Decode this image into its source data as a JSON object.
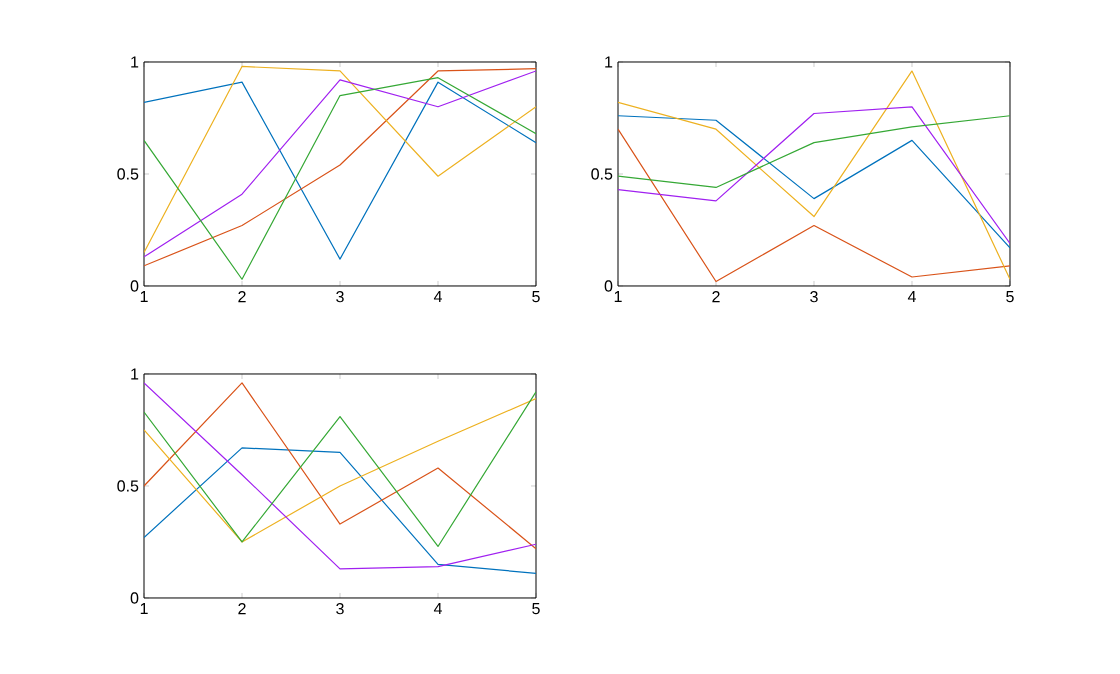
{
  "chart_data": [
    {
      "type": "line",
      "x": [
        1,
        2,
        3,
        4,
        5
      ],
      "xlim": [
        1,
        5
      ],
      "xticks": [
        1,
        2,
        3,
        4,
        5
      ],
      "ylim": [
        0,
        1
      ],
      "yticks": [
        0,
        0.5,
        1
      ],
      "series": [
        {
          "color": "#0072bd",
          "values": [
            0.82,
            0.91,
            0.12,
            0.91,
            0.64
          ]
        },
        {
          "color": "#d95319",
          "values": [
            0.09,
            0.27,
            0.54,
            0.96,
            0.97
          ]
        },
        {
          "color": "#edb120",
          "values": [
            0.15,
            0.98,
            0.96,
            0.49,
            0.8
          ]
        },
        {
          "color": "#a020f0",
          "values": [
            0.13,
            0.41,
            0.92,
            0.8,
            0.96
          ]
        },
        {
          "color": "#35a835",
          "values": [
            0.65,
            0.03,
            0.85,
            0.93,
            0.68
          ]
        }
      ]
    },
    {
      "type": "line",
      "x": [
        1,
        2,
        3,
        4,
        5
      ],
      "xlim": [
        1,
        5
      ],
      "xticks": [
        1,
        2,
        3,
        4,
        5
      ],
      "ylim": [
        0,
        1
      ],
      "yticks": [
        0,
        0.5,
        1
      ],
      "series": [
        {
          "color": "#0072bd",
          "values": [
            0.76,
            0.74,
            0.39,
            0.65,
            0.17
          ]
        },
        {
          "color": "#d95319",
          "values": [
            0.7,
            0.02,
            0.27,
            0.04,
            0.09
          ]
        },
        {
          "color": "#edb120",
          "values": [
            0.82,
            0.7,
            0.31,
            0.96,
            0.03
          ]
        },
        {
          "color": "#a020f0",
          "values": [
            0.43,
            0.38,
            0.77,
            0.8,
            0.19
          ]
        },
        {
          "color": "#35a835",
          "values": [
            0.49,
            0.44,
            0.64,
            0.71,
            0.76
          ]
        }
      ]
    },
    {
      "type": "line",
      "x": [
        1,
        2,
        3,
        4,
        5
      ],
      "xlim": [
        1,
        5
      ],
      "xticks": [
        1,
        2,
        3,
        4,
        5
      ],
      "ylim": [
        0,
        1
      ],
      "yticks": [
        0,
        0.5,
        1
      ],
      "series": [
        {
          "color": "#0072bd",
          "values": [
            0.27,
            0.67,
            0.65,
            0.15,
            0.11
          ]
        },
        {
          "color": "#d95319",
          "values": [
            0.5,
            0.96,
            0.33,
            0.58,
            0.22
          ]
        },
        {
          "color": "#edb120",
          "values": [
            0.75,
            0.25,
            0.5,
            0.7,
            0.89
          ]
        },
        {
          "color": "#a020f0",
          "values": [
            0.96,
            0.55,
            0.13,
            0.14,
            0.24
          ]
        },
        {
          "color": "#35a835",
          "values": [
            0.83,
            0.25,
            0.81,
            0.23,
            0.92
          ]
        }
      ]
    }
  ]
}
